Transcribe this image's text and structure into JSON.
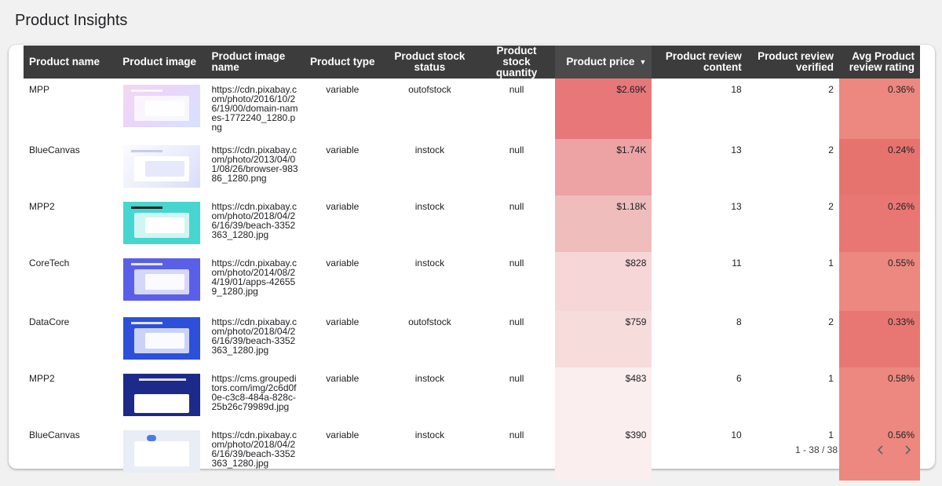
{
  "page": {
    "title": "Product Insights"
  },
  "table": {
    "columns": [
      "Product name",
      "Product image",
      "Product image name",
      "Product type",
      "Product stock status",
      "Product stock quantity",
      "Product price",
      "Product review content",
      "Product review verified",
      "Avg Product review rating"
    ],
    "sorted_column": "Product price",
    "sort_direction": "descending",
    "rows": [
      {
        "name": "MPP",
        "image_icon": "product-screenshot-pink-dashboard",
        "image_name": "https://cdn.pixabay.com/photo/2016/10/26/19/00/domain-names-1772240_1280.png",
        "type": "variable",
        "stock_status": "outofstock",
        "stock_quantity": "null",
        "price": "$2.69K",
        "review_content": "18",
        "review_verified": "2",
        "rating": "0.36%"
      },
      {
        "name": "BlueCanvas",
        "image_icon": "product-screenshot-light-dashboard",
        "image_name": "https://cdn.pixabay.com/photo/2013/04/01/08/26/browser-98386_1280.png",
        "type": "variable",
        "stock_status": "instock",
        "stock_quantity": "null",
        "price": "$1.74K",
        "review_content": "13",
        "review_verified": "2",
        "rating": "0.24%"
      },
      {
        "name": "MPP2",
        "image_icon": "product-screenshot-teal-app",
        "image_name": "https://cdn.pixabay.com/photo/2018/04/26/16/39/beach-3352363_1280.jpg",
        "type": "variable",
        "stock_status": "instock",
        "stock_quantity": "null",
        "price": "$1.18K",
        "review_content": "13",
        "review_verified": "2",
        "rating": "0.26%"
      },
      {
        "name": "CoreTech",
        "image_icon": "product-screenshot-purple-app",
        "image_name": "https://cdn.pixabay.com/photo/2014/08/24/19/01/apps-426559_1280.jpg",
        "type": "variable",
        "stock_status": "instock",
        "stock_quantity": "null",
        "price": "$828",
        "review_content": "11",
        "review_verified": "1",
        "rating": "0.55%"
      },
      {
        "name": "DataCore",
        "image_icon": "product-screenshot-blue-app",
        "image_name": "https://cdn.pixabay.com/photo/2018/04/26/16/39/beach-3352363_1280.jpg",
        "type": "variable",
        "stock_status": "outofstock",
        "stock_quantity": "null",
        "price": "$759",
        "review_content": "8",
        "review_verified": "2",
        "rating": "0.33%"
      },
      {
        "name": "MPP2",
        "image_icon": "product-screenshot-navy-landing",
        "image_name": "https://cms.groupeditors.com/img/2c6d0f0e-c3c8-484a-828c-25b26c79989d.jpg",
        "type": "variable",
        "stock_status": "instock",
        "stock_quantity": "null",
        "price": "$483",
        "review_content": "6",
        "review_verified": "1",
        "rating": "0.58%"
      },
      {
        "name": "BlueCanvas",
        "image_icon": "product-screenshot-light-app",
        "image_name": "https://cdn.pixabay.com/photo/2018/04/26/16/39/beach-3352363_1280.jpg",
        "type": "variable",
        "stock_status": "instock",
        "stock_quantity": "null",
        "price": "$390",
        "review_content": "10",
        "review_verified": "1",
        "rating": "0.56%"
      }
    ]
  },
  "heatmap_colors": {
    "price": [
      "#e8777a",
      "#eda2a4",
      "#f0bdbd",
      "#f6d6d7",
      "#f7dcdc",
      "#fbeeee",
      "#fbeeee"
    ],
    "rating": [
      "#ec887f",
      "#e7736f",
      "#e87773",
      "#ec887f",
      "#e87773",
      "#ec887f",
      "#ec887f"
    ]
  },
  "pagination": {
    "text": "1 - 38 / 38",
    "prev_icon": "chevron-left-icon",
    "next_icon": "chevron-right-icon"
  }
}
